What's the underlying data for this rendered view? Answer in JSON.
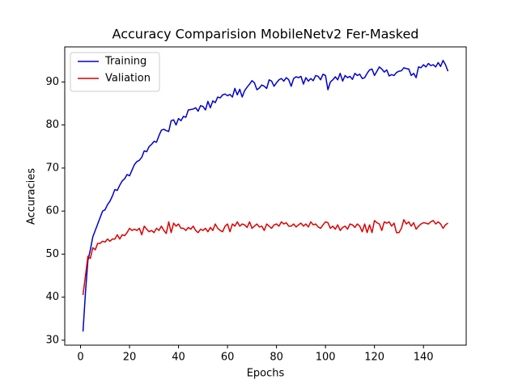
{
  "chart_data": {
    "type": "line",
    "title": "Accuracy Comparision MobileNetv2 Fer-Masked",
    "xlabel": "Epochs",
    "ylabel": "Accuracies",
    "x": [
      1,
      2,
      3,
      4,
      5,
      6,
      7,
      8,
      9,
      10,
      11,
      12,
      13,
      14,
      15,
      16,
      17,
      18,
      19,
      20,
      21,
      22,
      23,
      24,
      25,
      26,
      27,
      28,
      29,
      30,
      31,
      32,
      33,
      34,
      35,
      36,
      37,
      38,
      39,
      40,
      41,
      42,
      43,
      44,
      45,
      46,
      47,
      48,
      49,
      50,
      51,
      52,
      53,
      54,
      55,
      56,
      57,
      58,
      59,
      60,
      61,
      62,
      63,
      64,
      65,
      66,
      67,
      68,
      69,
      70,
      71,
      72,
      73,
      74,
      75,
      76,
      77,
      78,
      79,
      80,
      81,
      82,
      83,
      84,
      85,
      86,
      87,
      88,
      89,
      90,
      91,
      92,
      93,
      94,
      95,
      96,
      97,
      98,
      99,
      100,
      101,
      102,
      103,
      104,
      105,
      106,
      107,
      108,
      109,
      110,
      111,
      112,
      113,
      114,
      115,
      116,
      117,
      118,
      119,
      120,
      121,
      122,
      123,
      124,
      125,
      126,
      127,
      128,
      129,
      130,
      131,
      132,
      133,
      134,
      135,
      136,
      137,
      138,
      139,
      140,
      141,
      142,
      143,
      144,
      145,
      146,
      147,
      148,
      149,
      150
    ],
    "series": [
      {
        "name": "Training",
        "color": "#0000cc",
        "values": [
          32,
          41,
          48.5,
          51,
          54,
          55.5,
          57,
          58.5,
          60,
          60.3,
          61.5,
          62.3,
          63.5,
          65,
          64.8,
          66,
          67,
          67.5,
          68.5,
          68.2,
          69.5,
          70.8,
          71.5,
          71.8,
          72.5,
          74,
          73.8,
          75,
          75.5,
          76.2,
          76,
          77.5,
          78.8,
          79,
          78.7,
          78.5,
          81,
          81.2,
          80,
          81.5,
          81,
          82,
          81.8,
          83.5,
          83.6,
          83.7,
          84,
          83.2,
          84.5,
          84.3,
          83.5,
          85.5,
          84,
          85.6,
          85.2,
          86.5,
          86.3,
          87,
          87.2,
          86.8,
          87.1,
          86.5,
          88.5,
          87,
          88.3,
          86.5,
          88,
          88.8,
          89.5,
          90.3,
          89.8,
          88.2,
          88.6,
          89.3,
          89,
          88.5,
          90.5,
          90.2,
          89,
          89.8,
          90.5,
          90.8,
          90.2,
          91,
          90.5,
          89,
          90.8,
          91.2,
          91,
          91.3,
          89.5,
          91,
          90.2,
          90.8,
          90.3,
          91.5,
          91.3,
          90.5,
          91.8,
          91.5,
          88.2,
          90,
          90.5,
          91.2,
          90.5,
          92,
          90.2,
          91.5,
          91,
          91.3,
          90.6,
          92,
          91.5,
          91.8,
          90.8,
          91,
          92,
          92.8,
          93,
          91.5,
          92.5,
          93.5,
          93,
          92.3,
          92.8,
          91.4,
          91.7,
          91.5,
          92.2,
          92.5,
          92.6,
          93.3,
          93.1,
          93,
          91.5,
          92,
          91,
          93.5,
          93.3,
          94,
          93.5,
          94.3,
          93.8,
          94,
          93.5,
          94.5,
          93.6,
          95,
          94,
          92.5
        ]
      },
      {
        "name": "Valiation",
        "color": "#dd0000",
        "values": [
          40.5,
          45,
          49.5,
          49,
          51.5,
          51,
          52.5,
          52.5,
          53,
          52.8,
          53.5,
          53,
          53.5,
          53.5,
          54.5,
          53.5,
          54.5,
          54.3,
          55,
          56,
          55.5,
          55.8,
          55.5,
          56,
          54.5,
          56.5,
          55.8,
          55.2,
          55.5,
          55,
          56,
          55.5,
          56.5,
          55.5,
          54.8,
          57.5,
          55,
          57.2,
          56.5,
          57,
          56,
          56,
          55.5,
          56.2,
          55.8,
          56.5,
          55.5,
          55,
          55.8,
          55.5,
          56,
          55.2,
          56.2,
          55.5,
          57,
          56,
          55.5,
          55.2,
          56.5,
          57,
          55.2,
          57,
          56.5,
          57.5,
          56.5,
          57,
          56.8,
          56.2,
          57.5,
          56,
          56.5,
          57,
          56.3,
          56.5,
          55.5,
          57,
          56.5,
          56,
          56.8,
          57,
          56.5,
          57.5,
          57,
          57.3,
          56.5,
          56.5,
          57,
          56.3,
          56.8,
          57.2,
          56.5,
          57,
          56.3,
          57.5,
          56.8,
          57,
          56.3,
          56,
          56.8,
          57.5,
          57.3,
          56,
          56.5,
          55.8,
          56.8,
          55.5,
          56.2,
          56.5,
          55.8,
          57,
          56.8,
          56.2,
          57,
          56.5,
          55.2,
          57,
          55,
          56.8,
          55,
          57.8,
          57.3,
          57,
          55.5,
          57.5,
          57.2,
          57.5,
          56.5,
          57.2,
          55,
          55,
          56,
          58,
          57,
          57.5,
          56.5,
          57.3,
          55.8,
          56.5,
          57,
          57.3,
          57.2,
          57,
          57.5,
          57.8,
          57,
          57.5,
          57,
          56,
          56.8,
          57.2
        ]
      }
    ],
    "xlim": [
      -6.45,
      157.45
    ],
    "xticks": [
      0,
      20,
      40,
      60,
      80,
      100,
      120,
      140
    ],
    "ylim": [
      28.85,
      98.15
    ],
    "yticks": [
      30,
      40,
      50,
      60,
      70,
      80,
      90
    ],
    "legend": "upper left"
  }
}
